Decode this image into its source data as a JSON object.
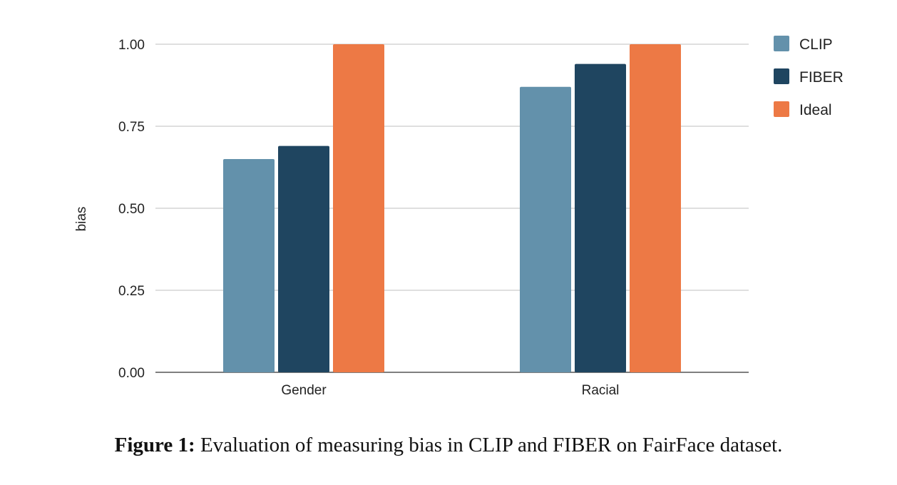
{
  "chart_data": {
    "type": "bar",
    "categories": [
      "Gender",
      "Racial"
    ],
    "series": [
      {
        "name": "CLIP",
        "values": [
          0.65,
          0.87
        ],
        "color": "#6391ab"
      },
      {
        "name": "FIBER",
        "values": [
          0.69,
          0.94
        ],
        "color": "#1f4560"
      },
      {
        "name": "Ideal",
        "values": [
          1.0,
          1.0
        ],
        "color": "#ed7945"
      }
    ],
    "ylabel": "bias",
    "xlabel": "",
    "ylim": [
      0,
      1
    ],
    "yticks": [
      "0.00",
      "0.25",
      "0.50",
      "0.75",
      "1.00"
    ],
    "ytick_values": [
      0,
      0.25,
      0.5,
      0.75,
      1.0
    ],
    "grid": true,
    "legend_position": "top-right"
  },
  "caption": {
    "label": "Figure 1:",
    "text": "Evaluation of measuring bias in CLIP and FIBER on FairFace dataset."
  }
}
